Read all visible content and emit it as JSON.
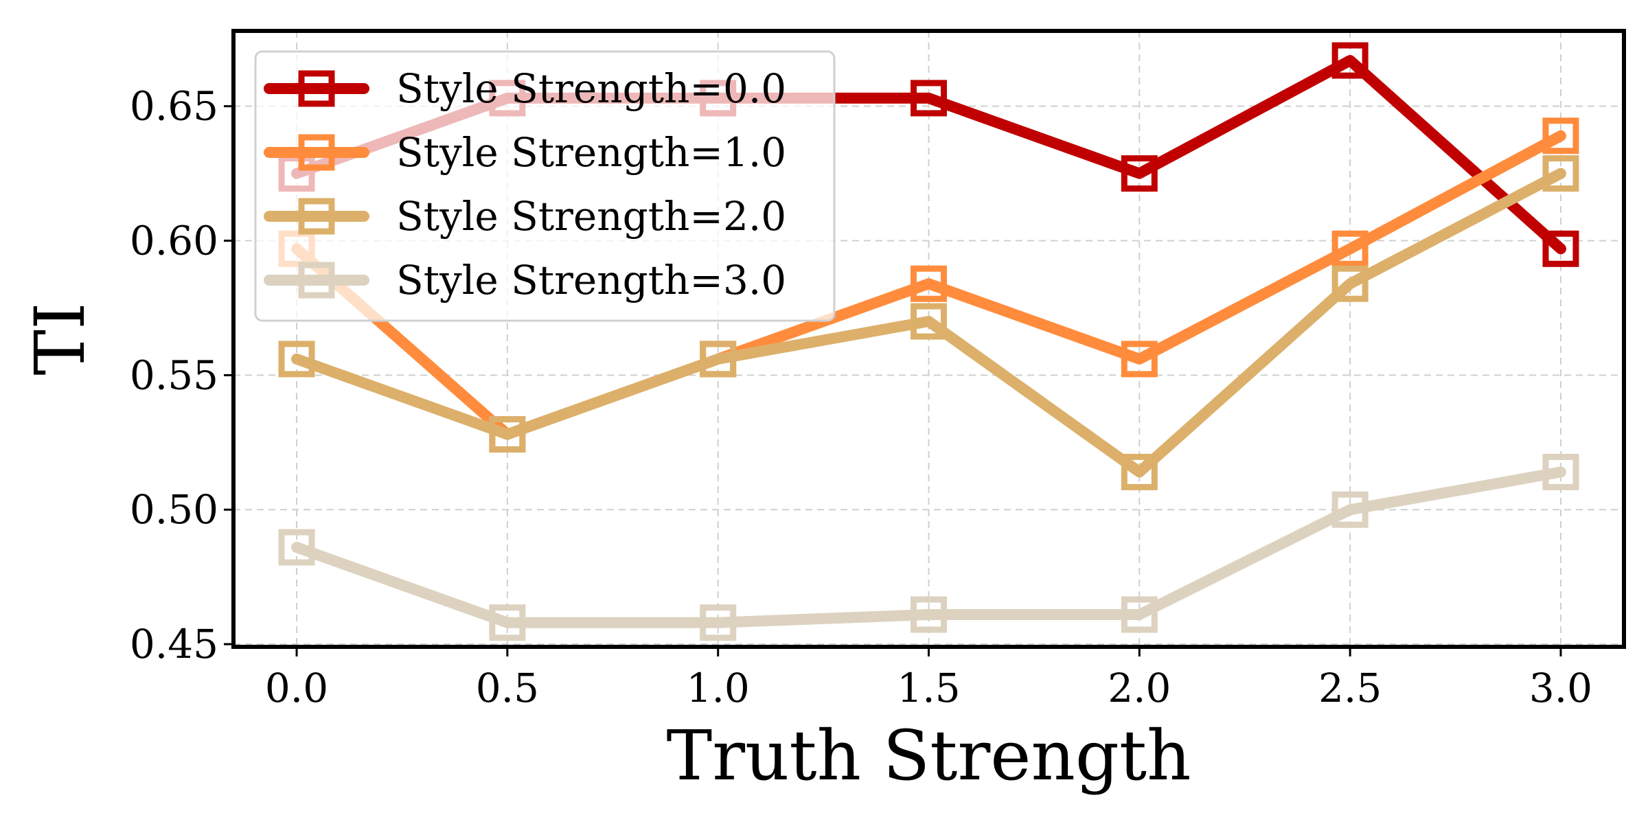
{
  "chart_data": {
    "type": "line",
    "title": "",
    "xlabel": "Truth Strength",
    "ylabel": "TI",
    "x": [
      0.0,
      0.5,
      1.0,
      1.5,
      2.0,
      2.5,
      3.0
    ],
    "x_tick_labels": [
      "0.0",
      "0.5",
      "1.0",
      "1.5",
      "2.0",
      "2.5",
      "3.0"
    ],
    "xlim": [
      -0.15,
      3.15
    ],
    "y_ticks": [
      0.45,
      0.5,
      0.55,
      0.6,
      0.65
    ],
    "y_tick_labels": [
      "0.45",
      "0.50",
      "0.55",
      "0.60",
      "0.65"
    ],
    "ylim": [
      0.449,
      0.678
    ],
    "grid": true,
    "legend_position": "top-left",
    "series": [
      {
        "name": "Style Strength=0.0",
        "color": "#c00000",
        "values": [
          0.625,
          0.653,
          0.653,
          0.653,
          0.625,
          0.667,
          0.597
        ]
      },
      {
        "name": "Style Strength=1.0",
        "color": "#ff8c3c",
        "values": [
          0.597,
          0.528,
          0.556,
          0.584,
          0.556,
          0.597,
          0.639
        ]
      },
      {
        "name": "Style Strength=2.0",
        "color": "#dcb06a",
        "values": [
          0.556,
          0.528,
          0.556,
          0.57,
          0.514,
          0.584,
          0.625
        ]
      },
      {
        "name": "Style Strength=3.0",
        "color": "#dcd2bf",
        "values": [
          0.486,
          0.458,
          0.458,
          0.461,
          0.461,
          0.5,
          0.514
        ]
      }
    ]
  }
}
